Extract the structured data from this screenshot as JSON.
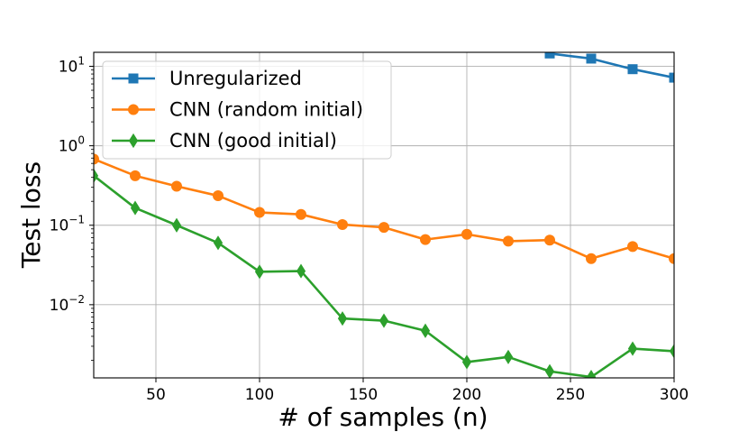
{
  "chart_data": {
    "type": "line",
    "title": "",
    "xlabel": "# of samples (n)",
    "ylabel": "Test loss",
    "yscale": "log",
    "xlim": [
      20,
      300
    ],
    "ylim": [
      0.0012,
      15
    ],
    "grid": true,
    "legend_position": "top-left",
    "xticks": [
      {
        "value": 50,
        "label": "50"
      },
      {
        "value": 100,
        "label": "100"
      },
      {
        "value": 150,
        "label": "150"
      },
      {
        "value": 200,
        "label": "200"
      },
      {
        "value": 250,
        "label": "250"
      },
      {
        "value": 300,
        "label": "300"
      }
    ],
    "yticks": [
      {
        "value": 10,
        "base": "10",
        "exp": "1"
      },
      {
        "value": 1,
        "base": "10",
        "exp": "0"
      },
      {
        "value": 0.1,
        "base": "10",
        "exp": "−1"
      },
      {
        "value": 0.01,
        "base": "10",
        "exp": "−2"
      }
    ],
    "series": [
      {
        "name": "Unregularized",
        "color": "#1f77b4",
        "marker": "square",
        "x": [
          240,
          260,
          280,
          300
        ],
        "values": [
          14.5,
          12.5,
          9.2,
          7.2
        ]
      },
      {
        "name": "CNN (random initial)",
        "color": "#ff7f0e",
        "marker": "circle",
        "x": [
          20,
          40,
          60,
          80,
          100,
          120,
          140,
          160,
          180,
          200,
          220,
          240,
          260,
          280,
          300
        ],
        "values": [
          0.68,
          0.42,
          0.31,
          0.235,
          0.145,
          0.137,
          0.102,
          0.094,
          0.066,
          0.077,
          0.063,
          0.065,
          0.038,
          0.054,
          0.038
        ]
      },
      {
        "name": "CNN (good initial)",
        "color": "#2ca02c",
        "marker": "diamond",
        "x": [
          20,
          40,
          60,
          80,
          100,
          120,
          140,
          160,
          180,
          200,
          220,
          240,
          260,
          280,
          300
        ],
        "values": [
          0.42,
          0.165,
          0.1,
          0.06,
          0.026,
          0.0265,
          0.0067,
          0.0063,
          0.0047,
          0.0019,
          0.0022,
          0.00145,
          0.00123,
          0.0028,
          0.0026
        ]
      }
    ]
  }
}
